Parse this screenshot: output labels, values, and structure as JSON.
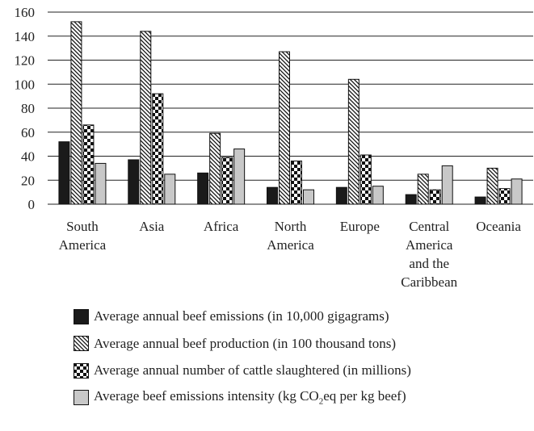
{
  "chart_data": {
    "type": "bar",
    "categories": [
      [
        "South",
        "America"
      ],
      [
        "Asia"
      ],
      [
        "Africa"
      ],
      [
        "North",
        "America"
      ],
      [
        "Europe"
      ],
      [
        "Central",
        "America",
        "and the",
        "Caribbean"
      ],
      [
        "Oceania"
      ]
    ],
    "series": [
      {
        "name": "Average annual beef emissions (in 10,000 gigagrams)",
        "values": [
          52,
          37,
          26,
          14,
          14,
          8,
          6
        ],
        "color": "#1a1a1a",
        "pattern": "solid-dark"
      },
      {
        "name": "Average annual beef production (in 100 thousand tons)",
        "values": [
          152,
          144,
          59,
          127,
          104,
          25,
          30
        ],
        "color": "#ffffff",
        "pattern": "diagonal-hatch"
      },
      {
        "name": "Average annual number of cattle slaughtered (in millions)",
        "values": [
          66,
          92,
          39,
          36,
          41,
          12,
          13
        ],
        "color": "#ffffff",
        "pattern": "checker"
      },
      {
        "name_prefix": "Average beef emissions intensity (kg CO",
        "name_sub": "2",
        "name_suffix": "eq per kg beef)",
        "values": [
          34,
          25,
          46,
          12,
          15,
          32,
          21
        ],
        "color": "#c8c8c8",
        "pattern": "solid-light"
      }
    ],
    "y_ticks": [
      0,
      20,
      40,
      60,
      80,
      100,
      120,
      140,
      160
    ],
    "ylim": [
      0,
      160
    ],
    "grid": true,
    "legend_position": "bottom"
  }
}
